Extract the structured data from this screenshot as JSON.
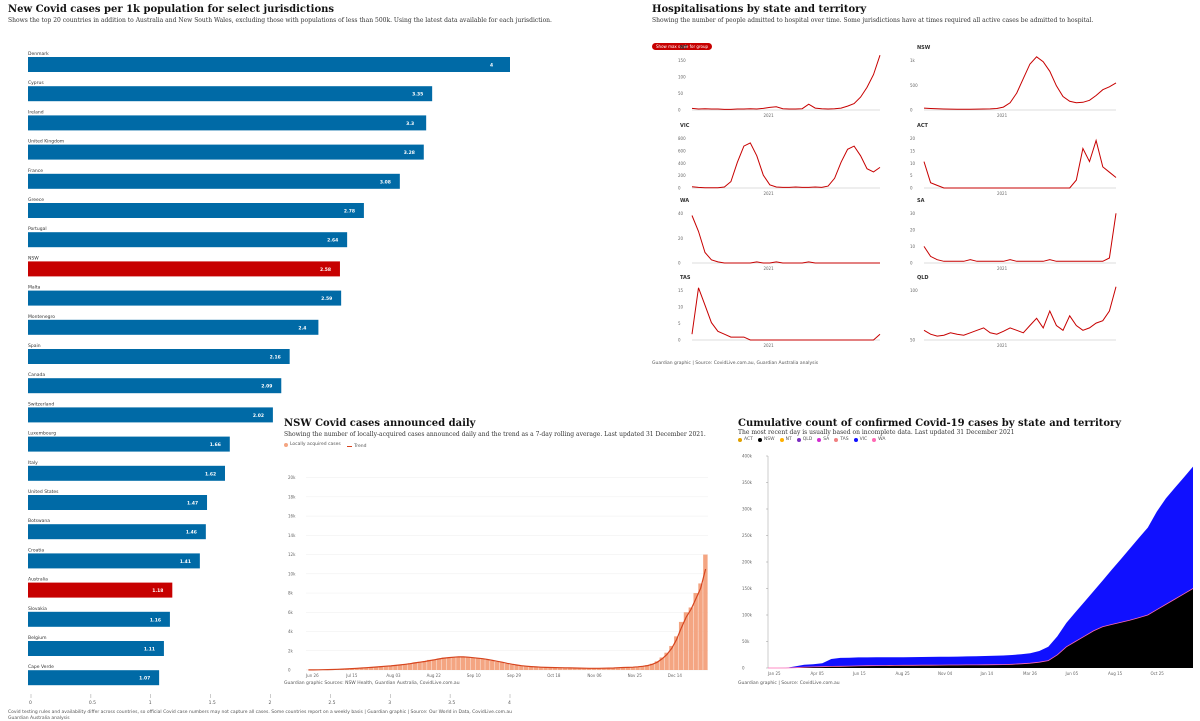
{
  "bar_panel": {
    "title": "New Covid cases per 1k population for select jurisdictions",
    "subtitle": "Shows the top 20 countries in addition to Australia and New South Wales, excluding those with populations of less than 500k. Using the latest data available for each jurisdiction.",
    "footnote": "Covid testing rules and availability differ across countries, so official Covid case numbers may not capture all cases. Some countries report on a weekly basis | Guardian graphic | Source: Our World in Data, CovidLive.com.au",
    "footnote2": "Guardian Australia analysis",
    "colors": {
      "default": "#006aa6",
      "highlight": "#c70000"
    }
  },
  "hosp_panel": {
    "title": "Hospitalisations by state and territory",
    "subtitle": "Showing the number of people admitted to hospital over time. Some jurisdictions have at times required all active cases be admitted to hospital.",
    "button_label": "Show max scale for group",
    "source": "Guardian graphic | Source: CovidLive.com.au, Guardian Australia analysis",
    "line_color": "#c70000"
  },
  "nsw_panel": {
    "title": "NSW Covid cases announced daily",
    "subtitle": "Showing the number of locally-acquired cases announced daily and the trend as a 7-day rolling average. Last updated 31 December 2021.",
    "legend_bar": "Locally acquired cases",
    "legend_line": "Trend",
    "source": "Guardian graphic Sources: NSW Health, Guardian Australia, CovidLive.com.au",
    "colors": {
      "bar": "#f4a582",
      "line": "#d6451f"
    }
  },
  "cum_panel": {
    "title": "Cumulative count of confirmed Covid-19 cases by state and territory",
    "subtitle": "The most recent day is usually based on incomplete data. Last updated 31 December 2021",
    "source": "Guardian graphic | Source: CovidLive.com.au"
  },
  "chart_data": [
    {
      "type": "bar",
      "orientation": "horizontal",
      "categories": [
        "Denmark",
        "Cyprus",
        "Ireland",
        "United Kingdom",
        "France",
        "Greece",
        "Portugal",
        "NSW",
        "Malta",
        "Montenegro",
        "Spain",
        "Canada",
        "Switzerland",
        "Luxembourg",
        "Italy",
        "United States",
        "Botswana",
        "Croatia",
        "Australia",
        "Slovakia",
        "Belgium",
        "Cape Verde"
      ],
      "values": [
        4,
        3.35,
        3.3,
        3.28,
        3.08,
        2.78,
        2.64,
        2.58,
        2.59,
        2.4,
        2.16,
        2.09,
        2.02,
        1.66,
        1.62,
        1.47,
        1.46,
        1.41,
        1.18,
        1.16,
        1.11,
        1.07
      ],
      "value_labels": [
        "4",
        "3.35",
        "3.3",
        "3.28",
        "3.08",
        "2.78",
        "2.64",
        "2.58",
        "2.59",
        "2.4",
        "2.16",
        "2.09",
        "2.02",
        "1.66",
        "1.62",
        "1.47",
        "1.46",
        "1.41",
        "1.18",
        "1.16",
        "1.11",
        "1.07"
      ],
      "highlight": [
        "NSW",
        "Australia"
      ],
      "xlim": [
        0,
        4
      ],
      "xticks": [
        "0",
        "0.5",
        "1",
        "1.5",
        "2",
        "2.5",
        "3",
        "3.5",
        "4"
      ]
    },
    {
      "type": "line",
      "title": "Hospitalisations by state and territory",
      "x_label_center": "2021",
      "panels": [
        {
          "name": "NT",
          "yticks": [
            "0",
            "50",
            "100",
            "150"
          ],
          "ymax": 180,
          "values": [
            5,
            3,
            4,
            3,
            3,
            2,
            2,
            3,
            3,
            4,
            3,
            5,
            8,
            10,
            4,
            3,
            3,
            4,
            18,
            6,
            4,
            3,
            4,
            6,
            12,
            20,
            40,
            70,
            110,
            170
          ]
        },
        {
          "name": "NSW",
          "yticks": [
            "0",
            "500",
            "1k"
          ],
          "ymax": 1200,
          "values": [
            40,
            30,
            25,
            20,
            18,
            16,
            15,
            15,
            18,
            20,
            22,
            30,
            60,
            150,
            350,
            650,
            950,
            1100,
            1000,
            800,
            500,
            280,
            180,
            150,
            160,
            200,
            300,
            420,
            480,
            560
          ]
        },
        {
          "name": "VIC",
          "yticks": [
            "0",
            "200",
            "400",
            "600",
            "800"
          ],
          "ymax": 900,
          "values": [
            20,
            10,
            5,
            3,
            5,
            15,
            100,
            400,
            650,
            700,
            500,
            200,
            50,
            15,
            10,
            10,
            15,
            10,
            10,
            15,
            10,
            30,
            150,
            400,
            600,
            650,
            500,
            300,
            250,
            320
          ]
        },
        {
          "name": "ACT",
          "yticks": [
            "0",
            "5",
            "10",
            "15",
            "20"
          ],
          "ymax": 22,
          "values": [
            10,
            2,
            1,
            0,
            0,
            0,
            0,
            0,
            0,
            0,
            0,
            0,
            0,
            0,
            0,
            0,
            0,
            0,
            0,
            0,
            0,
            0,
            0,
            3,
            15,
            10,
            18,
            8,
            6,
            4
          ]
        },
        {
          "name": "WA",
          "yticks": [
            "0",
            "20",
            "40"
          ],
          "ymax": 55,
          "values": [
            45,
            30,
            10,
            3,
            1,
            0,
            0,
            0,
            0,
            0,
            1,
            0,
            0,
            1,
            0,
            0,
            0,
            0,
            1,
            0,
            0,
            0,
            0,
            0,
            0,
            0,
            0,
            0,
            0,
            0
          ]
        },
        {
          "name": "SA",
          "yticks": [
            "0",
            "10",
            "20",
            "30"
          ],
          "ymax": 35,
          "values": [
            10,
            4,
            2,
            1,
            1,
            1,
            1,
            2,
            1,
            1,
            1,
            1,
            1,
            2,
            1,
            1,
            1,
            1,
            1,
            2,
            1,
            1,
            1,
            1,
            1,
            1,
            1,
            1,
            3,
            30
          ]
        },
        {
          "name": "TAS",
          "yticks": [
            "0",
            "5",
            "10",
            "15"
          ],
          "ymax": 20,
          "values": [
            2,
            18,
            12,
            6,
            3,
            2,
            1,
            1,
            1,
            0,
            0,
            0,
            0,
            0,
            0,
            0,
            0,
            0,
            0,
            0,
            0,
            0,
            0,
            0,
            0,
            0,
            0,
            0,
            0,
            2
          ]
        },
        {
          "name": "QLD",
          "yticks": [
            "50",
            "100"
          ],
          "ymax": 120,
          "values": [
            20,
            12,
            8,
            10,
            15,
            12,
            10,
            15,
            20,
            25,
            15,
            12,
            18,
            25,
            20,
            15,
            30,
            45,
            25,
            60,
            30,
            20,
            50,
            30,
            20,
            25,
            35,
            40,
            60,
            110
          ]
        }
      ]
    },
    {
      "type": "bar",
      "title": "NSW Covid cases announced daily",
      "x_ticks": [
        "Jun 26",
        "Jul 15",
        "Aug 03",
        "Aug 22",
        "Sep 10",
        "Sep 29",
        "Oct 18",
        "Nov 06",
        "Nov 25",
        "Dec 14"
      ],
      "y_ticks": [
        "0",
        "2k",
        "4k",
        "6k",
        "8k",
        "10k",
        "12k",
        "14k",
        "16k",
        "18k",
        "20k"
      ],
      "ylim": [
        0,
        21000
      ],
      "values": [
        10,
        15,
        20,
        30,
        40,
        60,
        80,
        100,
        130,
        160,
        200,
        230,
        250,
        280,
        330,
        380,
        400,
        450,
        500,
        550,
        620,
        700,
        800,
        850,
        900,
        1050,
        1100,
        1200,
        1300,
        1300,
        1350,
        1400,
        1350,
        1300,
        1250,
        1200,
        1150,
        1050,
        950,
        850,
        780,
        650,
        550,
        480,
        420,
        380,
        330,
        300,
        280,
        260,
        250,
        240,
        230,
        220,
        210,
        200,
        190,
        180,
        180,
        170,
        180,
        190,
        200,
        220,
        250,
        260,
        280,
        300,
        350,
        400,
        500,
        650,
        900,
        1300,
        1800,
        2500,
        3500,
        5000,
        6000,
        6500,
        8000,
        9000,
        12000
      ],
      "trend": [
        10,
        14,
        19,
        27,
        37,
        52,
        70,
        90,
        115,
        145,
        180,
        210,
        240,
        270,
        310,
        350,
        390,
        430,
        480,
        530,
        590,
        660,
        740,
        810,
        880,
        980,
        1060,
        1150,
        1240,
        1290,
        1330,
        1370,
        1360,
        1330,
        1280,
        1230,
        1170,
        1090,
        1000,
        900,
        810,
        700,
        600,
        520,
        450,
        400,
        350,
        320,
        290,
        270,
        255,
        245,
        235,
        225,
        215,
        205,
        195,
        185,
        180,
        175,
        178,
        185,
        195,
        210,
        235,
        255,
        275,
        295,
        330,
        380,
        460,
        590,
        800,
        1150,
        1600,
        2250,
        3150,
        4400,
        5500,
        6300,
        7400,
        8500,
        10500
      ]
    },
    {
      "type": "area",
      "title": "Cumulative count of confirmed Covid-19 cases by state and territory",
      "stacked": true,
      "series_names": [
        "ACT",
        "NSW",
        "NT",
        "QLD",
        "SA",
        "TAS",
        "VIC",
        "WA"
      ],
      "series_colors": [
        "#e0a000",
        "#000000",
        "#ffb000",
        "#7b2cbf",
        "#d12bd1",
        "#f08080",
        "#1010ff",
        "#ff69b4"
      ],
      "x_ticks": [
        "Jan 25",
        "Apr 05",
        "Jun 15",
        "Aug 25",
        "Nov 04",
        "Jan 14",
        "Mar 26",
        "Jun 05",
        "Aug 15",
        "Oct 25"
      ],
      "y_ticks": [
        "0",
        "50k",
        "100k",
        "150k",
        "200k",
        "250k",
        "300k",
        "350k",
        "400k"
      ],
      "ylim": [
        0,
        400000
      ],
      "total": [
        0,
        0,
        100,
        3000,
        6000,
        7000,
        9000,
        17000,
        19000,
        19500,
        20000,
        20000,
        20100,
        20200,
        20300,
        20400,
        20500,
        20700,
        20900,
        21100,
        21300,
        21500,
        21800,
        22200,
        22600,
        23000,
        23500,
        24500,
        26000,
        28000,
        32000,
        40000,
        60000,
        85000,
        105000,
        125000,
        145000,
        165000,
        185000,
        205000,
        225000,
        245000,
        265000,
        295000,
        320000,
        340000,
        360000,
        380000
      ],
      "nsw": [
        0,
        0,
        50,
        500,
        1500,
        2000,
        2500,
        3000,
        3300,
        3500,
        4000,
        4300,
        4500,
        4700,
        4900,
        5000,
        5100,
        5200,
        5300,
        5500,
        5600,
        5700,
        5800,
        5900,
        6000,
        6200,
        6500,
        7000,
        8000,
        9000,
        11000,
        14000,
        25000,
        40000,
        50000,
        60000,
        70000,
        78000,
        82000,
        86000,
        90000,
        95000,
        100000,
        110000,
        120000,
        130000,
        140000,
        150000
      ]
    }
  ]
}
